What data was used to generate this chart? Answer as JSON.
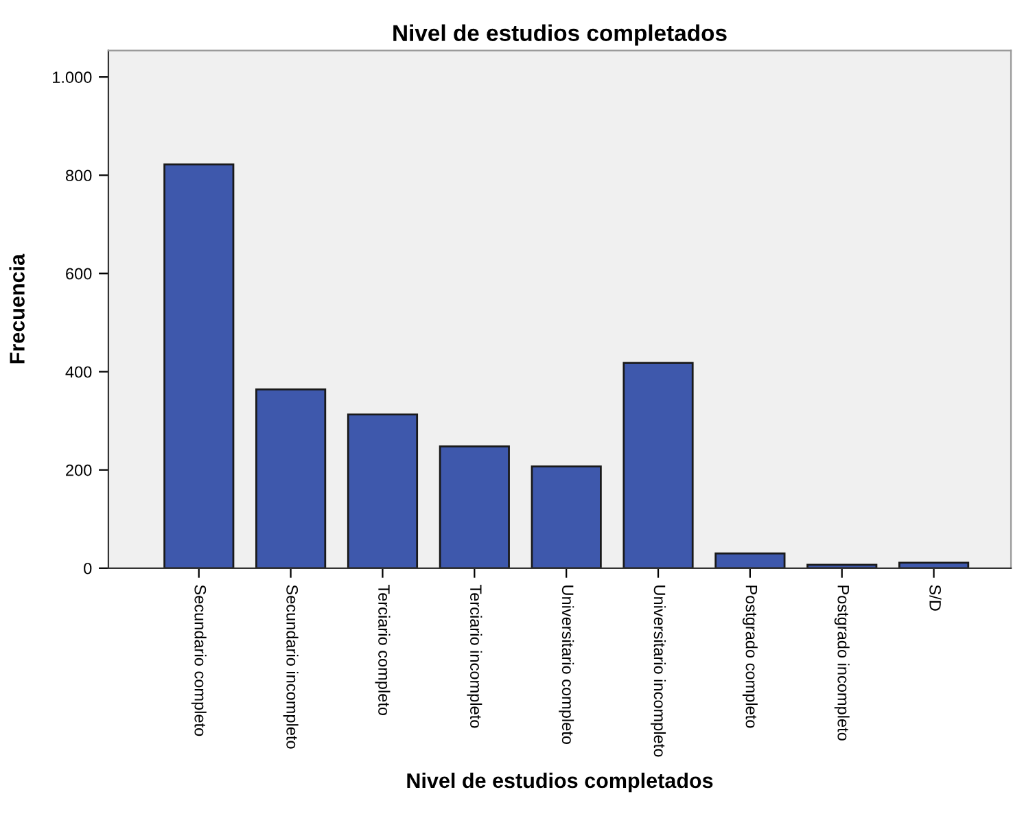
{
  "chart_data": {
    "type": "bar",
    "title": "Nivel de estudios completados",
    "xlabel": "Nivel de estudios completados",
    "ylabel": "Frecuencia",
    "categories": [
      "Secundario completo",
      "Secundario incompleto",
      "Terciario completo",
      "Terciario incompleto",
      "Universitario completo",
      "Universitario incompleto",
      "Postgrado completo",
      "Postgrado incompleto",
      "S/D"
    ],
    "values": [
      822,
      364,
      313,
      248,
      207,
      418,
      30,
      7,
      11
    ],
    "color": "#3e58ac",
    "ylim": [
      0,
      1054
    ],
    "yticks": [
      0,
      200,
      400,
      600,
      800,
      {
        "value": 1000,
        "label": "1.000"
      }
    ],
    "grid": false,
    "legend": false
  }
}
